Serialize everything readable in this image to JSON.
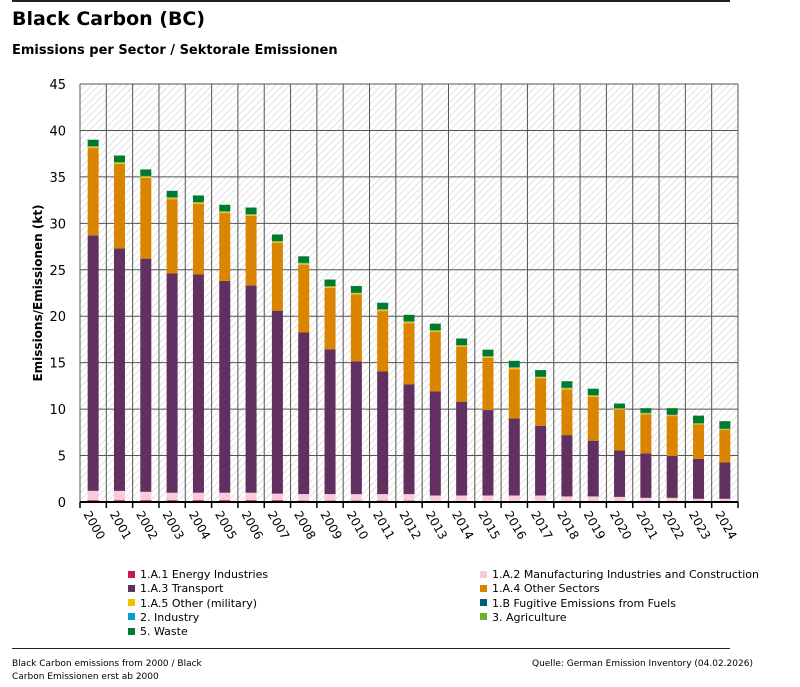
{
  "title": "Black Carbon (BC)",
  "subtitle": "Emissions per Sector / Sektorale Emissionen",
  "footer": {
    "left": "Black Carbon emissions from 2000 / Black Carbon Emissionen erst ab 2000",
    "right": "Quelle: German Emission Inventory (04.02.2026)"
  },
  "chart_data": {
    "type": "bar",
    "stacked": true,
    "ylabel": "Emissions/Emissionen (kt)",
    "ylim": [
      0,
      45
    ],
    "yticks": [
      0,
      5,
      10,
      15,
      20,
      25,
      30,
      35,
      40,
      45
    ],
    "grid": true,
    "legend_position": "bottom",
    "categories": [
      "2000",
      "2001",
      "2002",
      "2003",
      "2004",
      "2005",
      "2006",
      "2007",
      "2008",
      "2009",
      "2010",
      "2011",
      "2012",
      "2013",
      "2014",
      "2015",
      "2016",
      "2017",
      "2018",
      "2019",
      "2020",
      "2021",
      "2022",
      "2023",
      "2024"
    ],
    "series": [
      {
        "name": "1.A.1 Energy Industries",
        "color": "#c8185a",
        "values": [
          0.2,
          0.2,
          0.2,
          0.2,
          0.2,
          0.2,
          0.2,
          0.2,
          0.15,
          0.15,
          0.15,
          0.15,
          0.15,
          0.1,
          0.1,
          0.1,
          0.1,
          0.1,
          0.1,
          0.1,
          0.05,
          0.05,
          0.05,
          0.05,
          0.05
        ]
      },
      {
        "name": "1.A.2 Manufacturing Industries and Construction",
        "color": "#f8cadb",
        "values": [
          1.0,
          1.0,
          0.9,
          0.8,
          0.8,
          0.8,
          0.8,
          0.7,
          0.7,
          0.7,
          0.7,
          0.7,
          0.7,
          0.6,
          0.6,
          0.6,
          0.6,
          0.6,
          0.5,
          0.5,
          0.5,
          0.4,
          0.4,
          0.3,
          0.3
        ]
      },
      {
        "name": "1.A.3 Transport",
        "color": "#613061",
        "values": [
          27.5,
          26.1,
          25.1,
          23.6,
          23.5,
          22.8,
          22.3,
          19.7,
          17.4,
          15.6,
          14.3,
          13.2,
          11.8,
          11.2,
          10.1,
          9.2,
          8.3,
          7.5,
          6.6,
          6.0,
          5.0,
          4.8,
          4.5,
          4.3,
          3.9
        ]
      },
      {
        "name": "1.A.4 Other Sectors",
        "color": "#d98500",
        "values": [
          9.4,
          9.1,
          8.7,
          8.0,
          7.6,
          7.3,
          7.5,
          7.3,
          7.3,
          6.6,
          7.2,
          6.5,
          6.6,
          6.4,
          5.9,
          5.6,
          5.3,
          5.1,
          4.9,
          4.7,
          4.4,
          4.2,
          4.3,
          3.7,
          3.5
        ]
      },
      {
        "name": "1.A.5 Other (military)",
        "color": "#f5c000",
        "values": [
          0.15,
          0.15,
          0.15,
          0.15,
          0.15,
          0.15,
          0.15,
          0.15,
          0.15,
          0.15,
          0.15,
          0.15,
          0.15,
          0.15,
          0.15,
          0.15,
          0.15,
          0.15,
          0.15,
          0.15,
          0.1,
          0.1,
          0.1,
          0.1,
          0.1
        ]
      },
      {
        "name": "1.B Fugitive Emissions from Fuels",
        "color": "#005f7f",
        "values": [
          0,
          0,
          0,
          0,
          0,
          0,
          0,
          0,
          0,
          0,
          0,
          0,
          0,
          0,
          0,
          0,
          0,
          0,
          0,
          0,
          0,
          0,
          0,
          0,
          0
        ]
      },
      {
        "name": "2. Industry",
        "color": "#00a0d0",
        "values": [
          0.05,
          0.05,
          0.05,
          0.05,
          0.05,
          0.05,
          0.05,
          0.05,
          0.05,
          0.05,
          0.05,
          0.05,
          0.05,
          0.05,
          0.05,
          0.05,
          0.05,
          0.05,
          0.05,
          0.05,
          0.05,
          0.05,
          0.05,
          0.05,
          0.05
        ]
      },
      {
        "name": "3. Agriculture",
        "color": "#6ab42d",
        "values": [
          0,
          0,
          0,
          0,
          0,
          0,
          0,
          0,
          0,
          0,
          0,
          0,
          0,
          0,
          0,
          0,
          0,
          0,
          0,
          0,
          0,
          0,
          0,
          0,
          0
        ]
      },
      {
        "name": "5. Waste",
        "color": "#007a2f",
        "values": [
          0.7,
          0.7,
          0.7,
          0.7,
          0.7,
          0.7,
          0.7,
          0.7,
          0.7,
          0.7,
          0.7,
          0.7,
          0.7,
          0.7,
          0.7,
          0.7,
          0.7,
          0.7,
          0.7,
          0.7,
          0.5,
          0.5,
          0.7,
          0.8,
          0.8
        ]
      }
    ]
  }
}
